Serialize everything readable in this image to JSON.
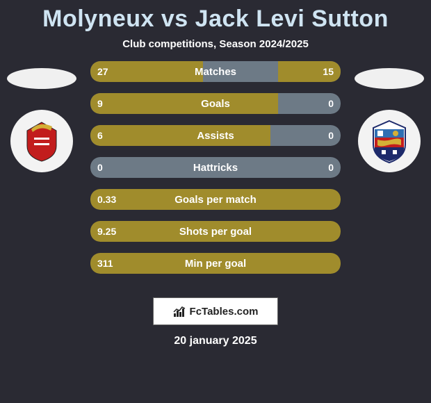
{
  "title": "Molyneux vs Jack Levi Sutton",
  "subtitle": "Club competitions, Season 2024/2025",
  "date": "20 january 2025",
  "footer_label": "FcTables.com",
  "colors": {
    "background": "#2a2a33",
    "title": "#cfe4f2",
    "bar_fill": "#a08c2c",
    "bar_track": "#6d7a86",
    "text": "#ffffff",
    "oval": "#f0f0f0",
    "crest_bg": "#f3f3f3"
  },
  "crest_left": {
    "name": "doncaster-crest",
    "shield_fill": "#c21d1d",
    "accent": "#d4af37"
  },
  "crest_right": {
    "name": "opponent-crest",
    "top": "#2f6fb3",
    "mid": "#c21d1d",
    "bottom": "#1d2a6b"
  },
  "bar_config": {
    "height": 30,
    "radius": 14,
    "gap": 16,
    "label_fontsize": 15,
    "value_fontsize": 14
  },
  "rows": [
    {
      "label": "Matches",
      "left_val": "27",
      "right_val": "15",
      "left_pct": 45,
      "right_pct": 25,
      "has_track": true
    },
    {
      "label": "Goals",
      "left_val": "9",
      "right_val": "0",
      "left_pct": 75,
      "right_pct": 0,
      "has_track": true
    },
    {
      "label": "Assists",
      "left_val": "6",
      "right_val": "0",
      "left_pct": 72,
      "right_pct": 0,
      "has_track": true
    },
    {
      "label": "Hattricks",
      "left_val": "0",
      "right_val": "0",
      "left_pct": 0,
      "right_pct": 0,
      "has_track": true
    },
    {
      "label": "Goals per match",
      "left_val": "0.33",
      "right_val": "",
      "left_pct": 100,
      "right_pct": 0,
      "has_track": false
    },
    {
      "label": "Shots per goal",
      "left_val": "9.25",
      "right_val": "",
      "left_pct": 100,
      "right_pct": 0,
      "has_track": false
    },
    {
      "label": "Min per goal",
      "left_val": "311",
      "right_val": "",
      "left_pct": 100,
      "right_pct": 0,
      "has_track": false
    }
  ]
}
